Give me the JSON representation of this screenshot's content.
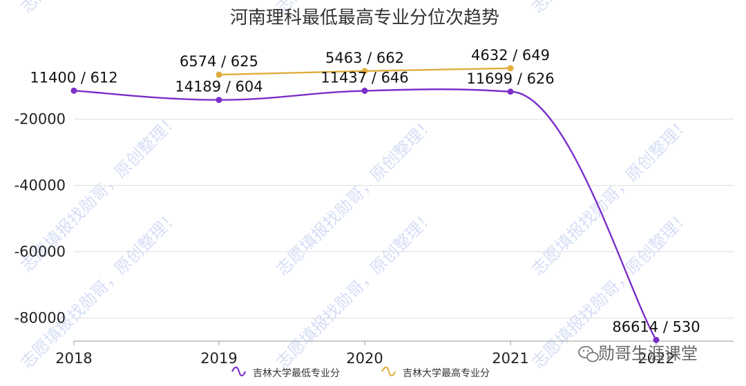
{
  "chart_data": {
    "type": "line",
    "title": "河南理科最低最高专业分位次趋势",
    "categories": [
      "2018",
      "2019",
      "2020",
      "2021",
      "2022"
    ],
    "ylim": [
      -90000,
      0
    ],
    "yticks": [
      -20000,
      -40000,
      -60000,
      -80000
    ],
    "ytick_labels": [
      "-20000",
      "-40000",
      "-60000",
      "-80000"
    ],
    "grid": true,
    "legend_position": "bottom",
    "series": [
      {
        "name": "吉林大学最低专业分",
        "color": "#7b2fc9",
        "values": [
          -11400,
          -14189,
          -11437,
          -11699,
          -86614
        ],
        "labels": [
          "11400 / 612",
          "14189 / 604",
          "11437 / 646",
          "11699 / 626",
          "86614 / 530"
        ]
      },
      {
        "name": "吉林大学最高专业分",
        "color": "#e0ad3c",
        "values": [
          null,
          -6574,
          -5463,
          -4632,
          null
        ],
        "labels": [
          null,
          "6574 / 625",
          "5463 / 662",
          "4632 / 649",
          null
        ]
      }
    ]
  },
  "watermark": {
    "text": "志愿填报找勋哥，原创整理！"
  },
  "brand": {
    "icon": "wechat-icon",
    "text": "勋哥生涯课堂"
  }
}
